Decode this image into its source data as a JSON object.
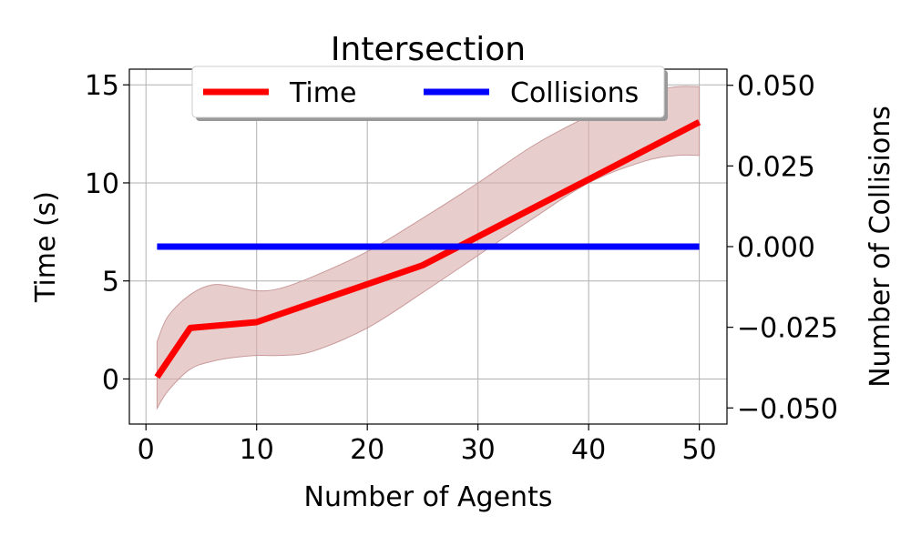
{
  "chart_data": {
    "type": "line",
    "title": "Intersection",
    "xlabel": "Number of Agents",
    "ylabel": "Time (s)",
    "y2label": "Number of Collisions",
    "xlim": [
      -1.5,
      52.5
    ],
    "ylim": [
      -2.3,
      15.8
    ],
    "y2lim": [
      -0.055,
      0.055
    ],
    "xticks": [
      0,
      10,
      20,
      30,
      40,
      50
    ],
    "yticks": [
      0,
      5,
      10,
      15
    ],
    "y2ticks": [
      0.05,
      0.025,
      0.0,
      -0.025,
      -0.05
    ],
    "y2tick_labels": [
      "0.050",
      "0.025",
      "0.000",
      "−0.025",
      "−0.050"
    ],
    "grid": true,
    "legend_position": "top-center",
    "series": [
      {
        "name": "Time",
        "axis": "left",
        "color": "#ff0000",
        "x": [
          1,
          4,
          10,
          25,
          50
        ],
        "y": [
          0.1,
          2.6,
          2.9,
          5.8,
          13.1
        ],
        "band": {
          "color": "#d9abab",
          "x": [
            1,
            2,
            4,
            6,
            8,
            10,
            12,
            15,
            20,
            25,
            30,
            35,
            40,
            45,
            48,
            50
          ],
          "upper": [
            1.9,
            3.2,
            4.3,
            4.8,
            4.7,
            4.5,
            4.6,
            5.2,
            6.5,
            8.2,
            10.0,
            11.9,
            13.4,
            14.6,
            14.9,
            14.9
          ],
          "lower": [
            -1.5,
            -0.6,
            0.5,
            0.9,
            1.1,
            1.2,
            1.2,
            1.4,
            2.6,
            4.4,
            6.3,
            8.2,
            10.0,
            11.1,
            11.4,
            11.4
          ]
        }
      },
      {
        "name": "Collisions",
        "axis": "right",
        "color": "#0000ff",
        "x": [
          1,
          50
        ],
        "y": [
          0.0,
          0.0
        ]
      }
    ]
  }
}
